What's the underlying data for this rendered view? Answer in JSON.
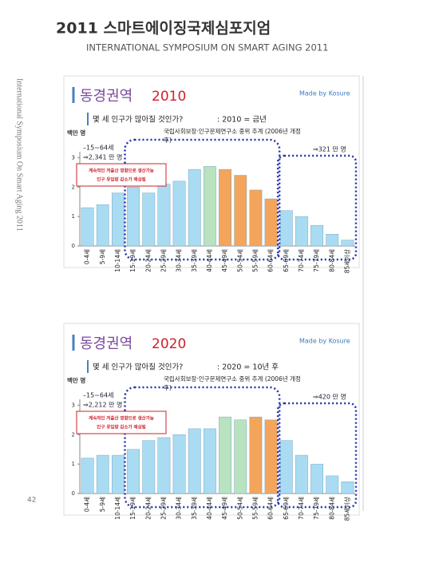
{
  "header": {
    "title": "2011 스마트에이징국제심포지엄",
    "subtitle": "INTERNATIONAL SYMPOSIUM ON SMART AGING 2011"
  },
  "side_text": "International Symposium On Smart Aging 2011",
  "page_number": "42",
  "chart_data": [
    {
      "type": "bar",
      "title": "동경권역",
      "title_year": "2010",
      "subtitle": "몇 세 인구가 많아질 것인가?",
      "note": ": 2010 = 금년",
      "credit": "Made by Kosure",
      "source": [
        "국립사회보장·인구문제연구소 중위 추계 (2006년 개정",
        "후)"
      ],
      "y_label": "백만 명",
      "annotations": [
        "–15~64세",
        "⇒2,341 만 명",
        "⇒321 만 명"
      ],
      "callout": [
        "계속적인 저출산 영향으로 생산가능",
        "인구 유입량 감소가 예상됨"
      ],
      "categories": [
        "0-4세",
        "5-9세",
        "10-14세",
        "15-19세",
        "20-24세",
        "25-29세",
        "30-34세",
        "35-39세",
        "40-44세",
        "45-49세",
        "50-54세",
        "55-59세",
        "60-64세",
        "65-69세",
        "70-74세",
        "75-79세",
        "80-84세",
        "85세이상"
      ],
      "values": [
        1.3,
        1.4,
        1.8,
        2.0,
        1.8,
        2.1,
        2.2,
        2.6,
        2.7,
        2.6,
        2.4,
        1.9,
        1.6,
        1.2,
        1.0,
        0.7,
        0.4,
        0.2
      ],
      "colors": [
        "#a9dcf2",
        "#a9dcf2",
        "#a9dcf2",
        "#a9dcf2",
        "#a9dcf2",
        "#a9dcf2",
        "#a9dcf2",
        "#a9dcf2",
        "#b9e3c0",
        "#f4a55c",
        "#f4a55c",
        "#f4a55c",
        "#f4a55c",
        "#a9dcf2",
        "#a9dcf2",
        "#a9dcf2",
        "#a9dcf2",
        "#a9dcf2"
      ],
      "ylim": [
        0,
        3.2
      ],
      "yticks": [
        0,
        1,
        2,
        3
      ]
    },
    {
      "type": "bar",
      "title": "동경권역",
      "title_year": "2020",
      "subtitle": "몇 세 인구가 많아질 것인가?",
      "note": ": 2020 = 10년 후",
      "credit": "Made by Kosure",
      "source": [
        "국립사회보장·인구문제연구소 중위 추계 (2006년 개정",
        "후)"
      ],
      "y_label": "백만 명",
      "annotations": [
        "–15~64세",
        "⇒2,212 만 명",
        "⇒420 만 명"
      ],
      "callout": [
        "계속적인 저출산 영향으로 생산가능",
        "인구 유입량 감소가 예상됨"
      ],
      "categories": [
        "0-4세",
        "5-9세",
        "10-14세",
        "15-19세",
        "20-24세",
        "25-29세",
        "30-34세",
        "35-39세",
        "40-44세",
        "45-49세",
        "50-54세",
        "55-59세",
        "60-64세",
        "65-69세",
        "70-74세",
        "75-79세",
        "80-84세",
        "85세이상"
      ],
      "values": [
        1.2,
        1.3,
        1.3,
        1.5,
        1.8,
        1.9,
        2.0,
        2.2,
        2.2,
        2.6,
        2.5,
        2.6,
        2.5,
        1.8,
        1.3,
        1.0,
        0.6,
        0.4
      ],
      "colors": [
        "#a9dcf2",
        "#a9dcf2",
        "#a9dcf2",
        "#a9dcf2",
        "#a9dcf2",
        "#a9dcf2",
        "#a9dcf2",
        "#a9dcf2",
        "#a9dcf2",
        "#b9e3c0",
        "#b9e3c0",
        "#f4a55c",
        "#f4a55c",
        "#a9dcf2",
        "#a9dcf2",
        "#a9dcf2",
        "#a9dcf2",
        "#a9dcf2"
      ],
      "ylim": [
        0,
        3.2
      ],
      "yticks": [
        0,
        1,
        2,
        3
      ]
    }
  ]
}
